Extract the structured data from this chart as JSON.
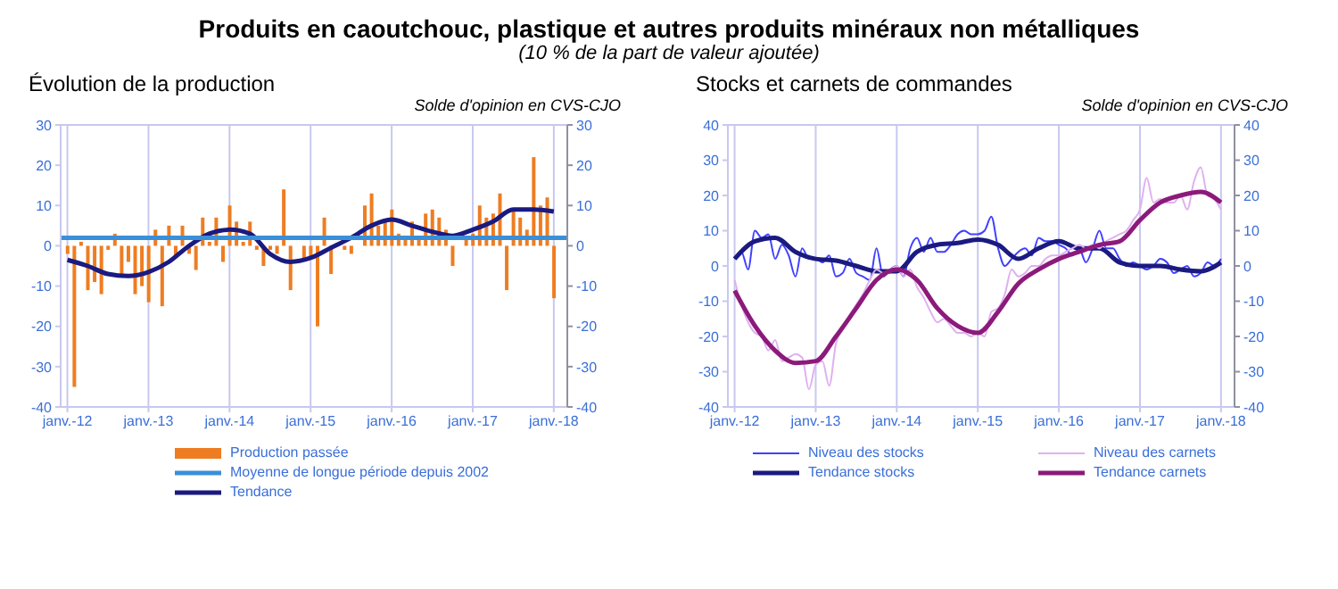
{
  "chart_data": [
    {
      "type": "bar",
      "title": "Évolution de la production",
      "subtitle": "Solde d'opinion en CVS-CJO",
      "annotations": [
        "Produits en caoutchouc, plastique et autres produits minéraux non métalliques",
        "(10 % de la part de valeur ajoutée)"
      ],
      "xlim": [
        "2011-12",
        "2018-03"
      ],
      "xticks": [
        {
          "value": "2012-01",
          "label": "janv.-12"
        },
        {
          "value": "2013-01",
          "label": "janv.-13"
        },
        {
          "value": "2014-01",
          "label": "janv.-14"
        },
        {
          "value": "2015-01",
          "label": "janv.-15"
        },
        {
          "value": "2016-01",
          "label": "janv.-16"
        },
        {
          "value": "2017-01",
          "label": "janv.-17"
        },
        {
          "value": "2018-01",
          "label": "janv.-18"
        }
      ],
      "ylim": [
        -40,
        30
      ],
      "yticks": [
        -40,
        -30,
        -20,
        -10,
        0,
        10,
        20,
        30
      ],
      "y2lim": [
        -40,
        30
      ],
      "y2ticks": [
        -40,
        -30,
        -20,
        -10,
        0,
        10,
        20,
        30
      ],
      "grid": true,
      "legend": "bottom",
      "marker": "none",
      "ref_lines": [
        {
          "axis": "y",
          "value": 2,
          "label": "Moyenne de longue période depuis 2002",
          "color": "#3a8fd8"
        }
      ],
      "series": [
        {
          "name": "Production passée",
          "color": "#ee7d22",
          "x": [
            "2012-01",
            "2012-02",
            "2012-03",
            "2012-04",
            "2012-05",
            "2012-06",
            "2012-07",
            "2012-08",
            "2012-09",
            "2012-10",
            "2012-11",
            "2012-12",
            "2013-01",
            "2013-02",
            "2013-03",
            "2013-04",
            "2013-05",
            "2013-06",
            "2013-07",
            "2013-08",
            "2013-09",
            "2013-10",
            "2013-11",
            "2013-12",
            "2014-01",
            "2014-02",
            "2014-03",
            "2014-04",
            "2014-05",
            "2014-06",
            "2014-07",
            "2014-08",
            "2014-09",
            "2014-10",
            "2014-11",
            "2014-12",
            "2015-01",
            "2015-02",
            "2015-03",
            "2015-04",
            "2015-05",
            "2015-06",
            "2015-07",
            "2015-08",
            "2015-09",
            "2015-10",
            "2015-11",
            "2015-12",
            "2016-01",
            "2016-02",
            "2016-03",
            "2016-04",
            "2016-05",
            "2016-06",
            "2016-07",
            "2016-08",
            "2016-09",
            "2016-10",
            "2016-11",
            "2016-12",
            "2017-01",
            "2017-02",
            "2017-03",
            "2017-04",
            "2017-05",
            "2017-06",
            "2017-07",
            "2017-08",
            "2017-09",
            "2017-10",
            "2017-11",
            "2017-12",
            "2018-01"
          ],
          "values": [
            -2,
            -35,
            1,
            -11,
            -9,
            -12,
            -1,
            3,
            -7,
            -4,
            -12,
            -10,
            -14,
            4,
            -15,
            5,
            -3,
            5,
            -2,
            -6,
            7,
            1,
            7,
            -4,
            10,
            6,
            1,
            6,
            -1,
            -5,
            -1,
            -2,
            14,
            -11,
            0,
            -3,
            -3,
            -20,
            7,
            -7,
            0,
            -1,
            -2,
            0,
            10,
            13,
            5,
            6,
            9,
            3,
            2,
            6,
            2,
            8,
            9,
            7,
            4,
            -5,
            0,
            2,
            3,
            10,
            7,
            8,
            13,
            -11,
            9,
            7,
            4,
            22,
            10,
            12,
            -13
          ]
        },
        {
          "name": "Tendance",
          "type": "line",
          "color": "#1a1a80",
          "x": [
            "2012-01",
            "2012-04",
            "2012-07",
            "2012-10",
            "2013-01",
            "2013-04",
            "2013-07",
            "2013-10",
            "2014-01",
            "2014-04",
            "2014-07",
            "2014-10",
            "2015-01",
            "2015-04",
            "2015-07",
            "2015-10",
            "2016-01",
            "2016-04",
            "2016-07",
            "2016-10",
            "2017-01",
            "2017-04",
            "2017-07",
            "2017-10",
            "2018-01"
          ],
          "values": [
            -3.5,
            -5,
            -7,
            -7.5,
            -6.5,
            -4,
            0,
            3,
            4,
            3,
            -2,
            -4,
            -3,
            -0.5,
            2,
            5,
            6.5,
            5,
            3.5,
            2.5,
            4,
            6,
            9,
            9,
            8.5
          ]
        }
      ]
    },
    {
      "type": "line",
      "title": "Stocks et carnets de commandes",
      "subtitle": "Solde d'opinion en CVS-CJO",
      "xlim": [
        "2011-12",
        "2018-03"
      ],
      "xticks": [
        {
          "value": "2012-01",
          "label": "janv.-12"
        },
        {
          "value": "2013-01",
          "label": "janv.-13"
        },
        {
          "value": "2014-01",
          "label": "janv.-14"
        },
        {
          "value": "2015-01",
          "label": "janv.-15"
        },
        {
          "value": "2016-01",
          "label": "janv.-16"
        },
        {
          "value": "2017-01",
          "label": "janv.-17"
        },
        {
          "value": "2018-01",
          "label": "janv.-18"
        }
      ],
      "ylim": [
        -40,
        40
      ],
      "yticks": [
        -40,
        -30,
        -20,
        -10,
        0,
        10,
        20,
        30,
        40
      ],
      "y2lim": [
        -40,
        40
      ],
      "y2ticks": [
        -40,
        -30,
        -20,
        -10,
        0,
        10,
        20,
        30,
        40
      ],
      "grid": true,
      "legend": "bottom",
      "marker": "none",
      "series": [
        {
          "name": "Niveau des stocks",
          "color": "#4040ff",
          "x": [
            "2012-01",
            "2012-02",
            "2012-03",
            "2012-04",
            "2012-05",
            "2012-06",
            "2012-07",
            "2012-08",
            "2012-09",
            "2012-10",
            "2012-11",
            "2012-12",
            "2013-01",
            "2013-02",
            "2013-03",
            "2013-04",
            "2013-05",
            "2013-06",
            "2013-07",
            "2013-08",
            "2013-09",
            "2013-10",
            "2013-11",
            "2013-12",
            "2014-01",
            "2014-02",
            "2014-03",
            "2014-04",
            "2014-05",
            "2014-06",
            "2014-07",
            "2014-08",
            "2014-09",
            "2014-10",
            "2014-11",
            "2014-12",
            "2015-01",
            "2015-02",
            "2015-03",
            "2015-04",
            "2015-05",
            "2015-06",
            "2015-07",
            "2015-08",
            "2015-09",
            "2015-10",
            "2015-11",
            "2015-12",
            "2016-01",
            "2016-02",
            "2016-03",
            "2016-04",
            "2016-05",
            "2016-06",
            "2016-07",
            "2016-08",
            "2016-09",
            "2016-10",
            "2016-11",
            "2016-12",
            "2017-01",
            "2017-02",
            "2017-03",
            "2017-04",
            "2017-05",
            "2017-06",
            "2017-07",
            "2017-08",
            "2017-09",
            "2017-10",
            "2017-11",
            "2017-12",
            "2018-01"
          ],
          "values": [
            2,
            4,
            -1,
            10,
            8,
            9,
            2,
            6,
            3,
            -3,
            5,
            2,
            2,
            1,
            3,
            -3,
            -2,
            2,
            -2,
            -3,
            -4,
            5,
            -3,
            -1,
            0,
            -3,
            5,
            8,
            4,
            8,
            4,
            4,
            6,
            9,
            10,
            9,
            9,
            10,
            14,
            5,
            0,
            2,
            4,
            5,
            3,
            8,
            7,
            7,
            6,
            5,
            3,
            5,
            1,
            5,
            10,
            5,
            5,
            2,
            0,
            1,
            0,
            -1,
            0,
            2,
            1,
            -2,
            -1,
            0,
            -3,
            -2,
            1,
            0,
            2
          ]
        },
        {
          "name": "Tendance stocks",
          "color": "#1a1a80",
          "x": [
            "2012-01",
            "2012-04",
            "2012-07",
            "2012-10",
            "2013-01",
            "2013-04",
            "2013-07",
            "2013-10",
            "2014-01",
            "2014-04",
            "2014-07",
            "2014-10",
            "2015-01",
            "2015-04",
            "2015-07",
            "2015-10",
            "2016-01",
            "2016-04",
            "2016-07",
            "2016-10",
            "2017-01",
            "2017-04",
            "2017-07",
            "2017-10",
            "2018-01"
          ],
          "values": [
            2,
            7,
            8,
            4,
            2,
            1.5,
            0,
            -1.5,
            -1.5,
            4,
            6,
            6.5,
            7.5,
            6,
            2,
            5,
            7,
            5,
            5,
            1,
            0,
            0,
            -1,
            -1.5,
            1
          ]
        },
        {
          "name": "Niveau des carnets",
          "color": "#e0b0f0",
          "x": [
            "2012-01",
            "2012-02",
            "2012-03",
            "2012-04",
            "2012-05",
            "2012-06",
            "2012-07",
            "2012-08",
            "2012-09",
            "2012-10",
            "2012-11",
            "2012-12",
            "2013-01",
            "2013-02",
            "2013-03",
            "2013-04",
            "2013-05",
            "2013-06",
            "2013-07",
            "2013-08",
            "2013-09",
            "2013-10",
            "2013-11",
            "2013-12",
            "2014-01",
            "2014-02",
            "2014-03",
            "2014-04",
            "2014-05",
            "2014-06",
            "2014-07",
            "2014-08",
            "2014-09",
            "2014-10",
            "2014-11",
            "2014-12",
            "2015-01",
            "2015-02",
            "2015-03",
            "2015-04",
            "2015-05",
            "2015-06",
            "2015-07",
            "2015-08",
            "2015-09",
            "2015-10",
            "2015-11",
            "2015-12",
            "2016-01",
            "2016-02",
            "2016-03",
            "2016-04",
            "2016-05",
            "2016-06",
            "2016-07",
            "2016-08",
            "2016-09",
            "2016-10",
            "2016-11",
            "2016-12",
            "2017-01",
            "2017-02",
            "2017-03",
            "2017-04",
            "2017-05",
            "2017-06",
            "2017-07",
            "2017-08",
            "2017-09",
            "2017-10",
            "2017-11",
            "2017-12",
            "2018-01"
          ],
          "values": [
            -4,
            -11,
            -16,
            -19,
            -20,
            -24,
            -21,
            -27,
            -26,
            -25,
            -26,
            -35,
            -28,
            -27,
            -34,
            -22,
            -18,
            -14,
            -11,
            -8,
            -4,
            -1,
            -2,
            -1,
            0,
            -3,
            -1,
            -6,
            -9,
            -13,
            -16,
            -15,
            -17,
            -19,
            -19,
            -20,
            -19,
            -20,
            -13,
            -12,
            -8,
            -1,
            -3,
            -2,
            0,
            0,
            2,
            3,
            3,
            4,
            5,
            6,
            5,
            6,
            5,
            7,
            8,
            9,
            10,
            13,
            16,
            25,
            18,
            19,
            18,
            18,
            20,
            16,
            24,
            28,
            20,
            19,
            16
          ]
        },
        {
          "name": "Tendance carnets",
          "color": "#8b1a7a",
          "x": [
            "2012-01",
            "2012-04",
            "2012-07",
            "2012-10",
            "2013-01",
            "2013-04",
            "2013-07",
            "2013-10",
            "2014-01",
            "2014-04",
            "2014-07",
            "2014-10",
            "2015-01",
            "2015-04",
            "2015-07",
            "2015-10",
            "2016-01",
            "2016-04",
            "2016-07",
            "2016-10",
            "2017-01",
            "2017-04",
            "2017-07",
            "2017-10",
            "2018-01"
          ],
          "values": [
            -7,
            -17,
            -24,
            -27.5,
            -27,
            -20,
            -12,
            -4,
            -1,
            -4,
            -12,
            -17,
            -19,
            -13,
            -5,
            -1,
            2,
            4,
            6,
            7,
            13,
            18,
            20,
            21,
            18
          ]
        }
      ]
    }
  ]
}
